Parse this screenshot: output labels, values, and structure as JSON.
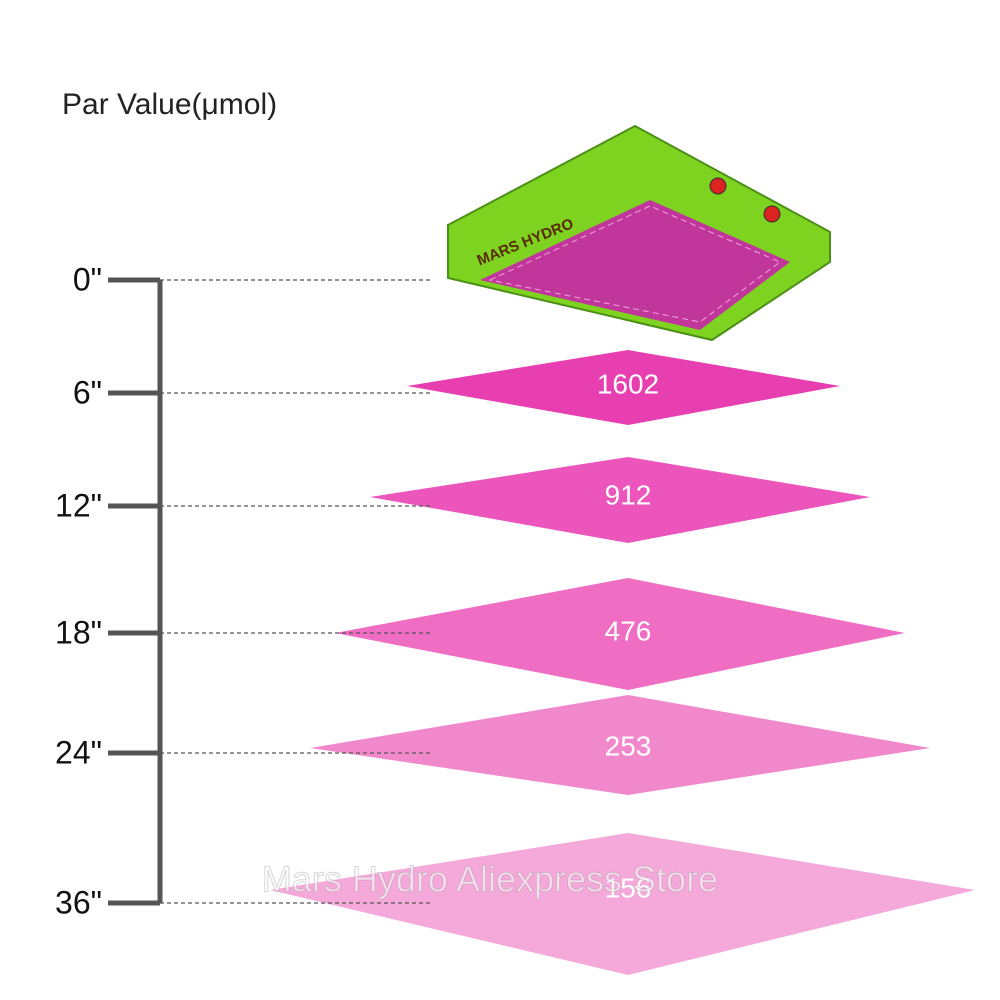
{
  "title": "Par Value(μmol)",
  "lamp": {
    "brand": "MARS HYDRO"
  },
  "heights": [
    "0\"",
    "6\"",
    "12\"",
    "18\"",
    "24\"",
    "36\""
  ],
  "par_values": [
    "1602",
    "912",
    "476",
    "253",
    "156"
  ],
  "watermark": "Mars Hydro Aliexpress Store"
}
